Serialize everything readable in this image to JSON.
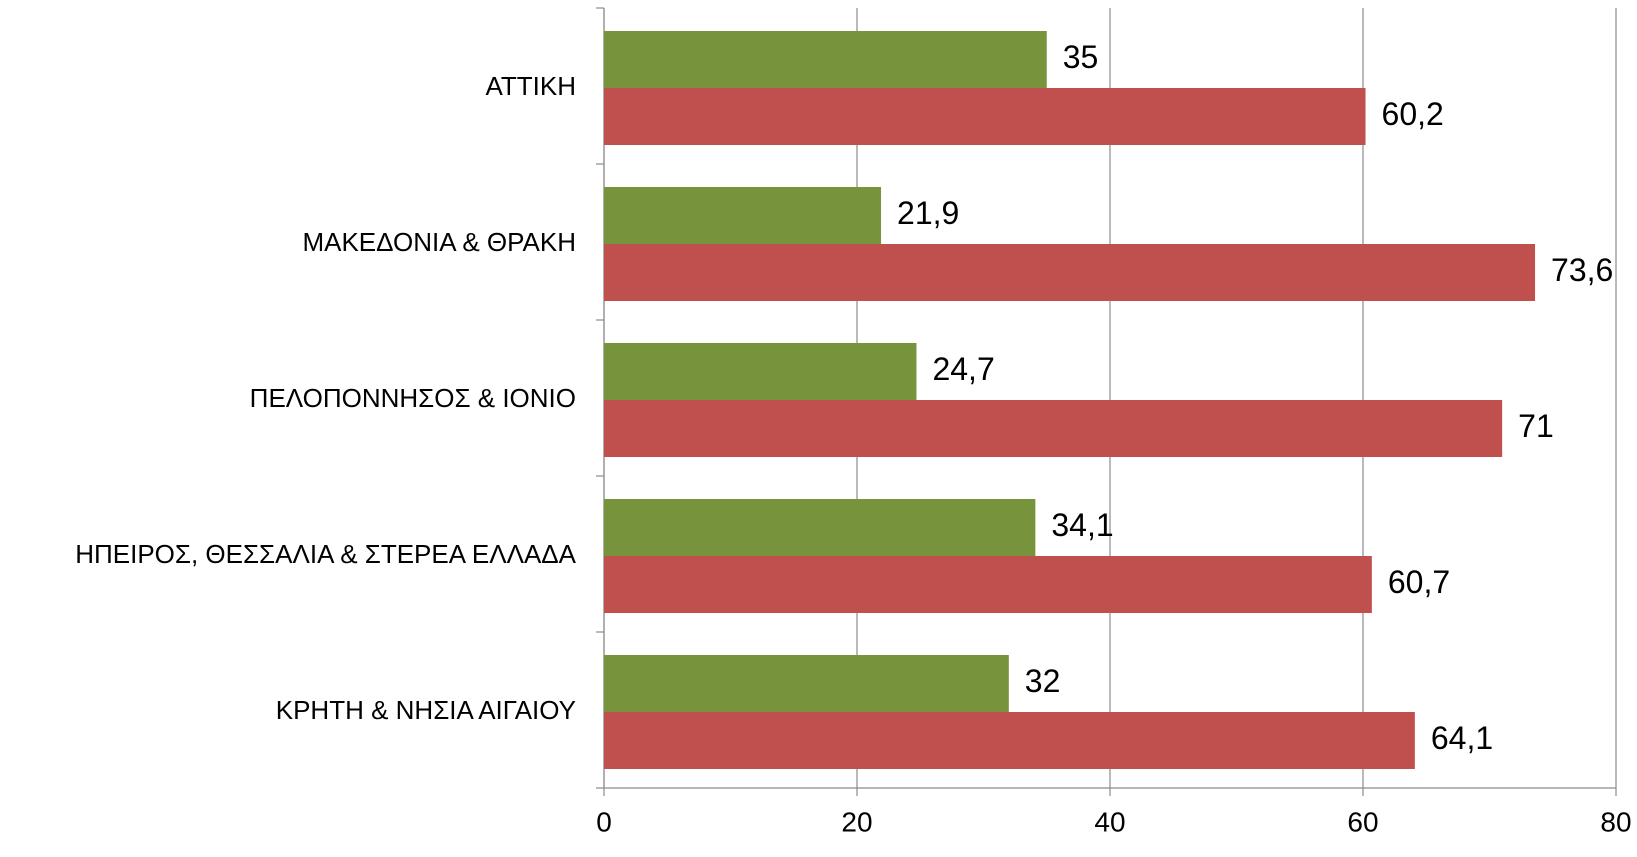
{
  "chart_data": {
    "type": "hbar",
    "categories": [
      "ΑΤΤΙΚΗ",
      "ΜΑΚΕΔΟΝΙΑ & ΘΡΑΚΗ",
      "ΠΕΛΟΠΟΝΝΗΣΟΣ & ΙΟΝΙΟ",
      "ΗΠΕΙΡΟΣ, ΘΕΣΣΑΛΙΑ & ΣΤΕΡΕΑ ΕΛΛΑΔΑ",
      "ΚΡΗΤΗ & ΝΗΣΙΑ ΑΙΓΑΙΟΥ"
    ],
    "series": [
      {
        "color": "#77933c",
        "values": [
          35,
          21.9,
          24.7,
          34.1,
          32
        ],
        "value_labels": [
          "35",
          "21,9",
          "24,7",
          "34,1",
          "32"
        ]
      },
      {
        "color": "#c0504d",
        "values": [
          60.2,
          73.6,
          71,
          60.7,
          64.1
        ],
        "value_labels": [
          "60,2",
          "73,6",
          "71",
          "60,7",
          "64,1"
        ]
      }
    ],
    "xlim": [
      0,
      80
    ],
    "xticks": [
      0,
      20,
      40,
      60,
      80
    ],
    "grid": true
  }
}
